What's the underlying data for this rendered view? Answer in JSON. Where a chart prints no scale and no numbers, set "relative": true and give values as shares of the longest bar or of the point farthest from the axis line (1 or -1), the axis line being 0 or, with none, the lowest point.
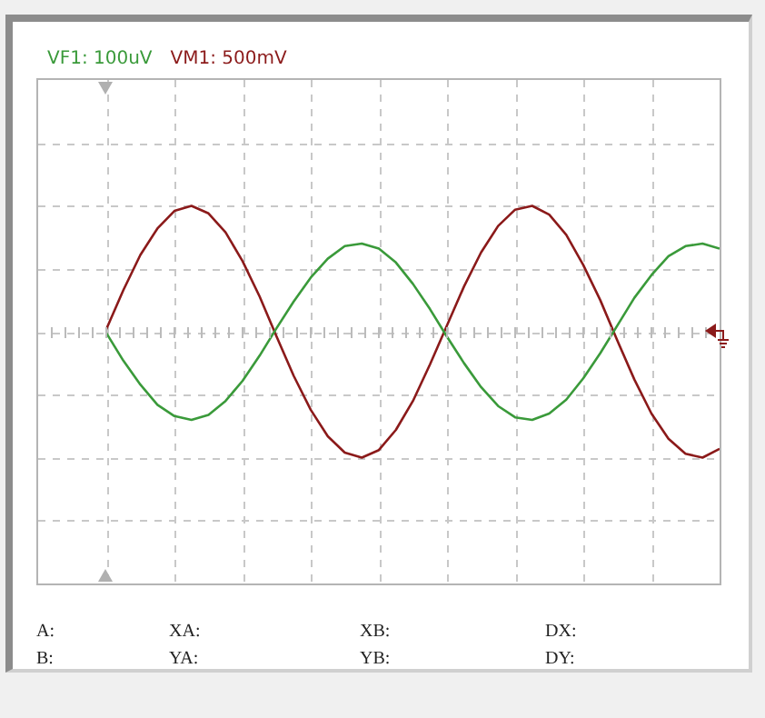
{
  "chart_data": {
    "type": "line",
    "relative": true,
    "grid": true,
    "legend": "top left",
    "marker": "none",
    "categories": [
      null,
      null,
      null,
      null,
      null,
      null,
      null,
      null,
      null,
      null,
      null,
      null,
      null,
      null,
      null,
      null,
      null,
      null,
      null,
      null,
      null,
      null,
      null,
      null,
      null,
      null,
      null,
      null,
      null,
      null,
      null,
      null,
      null,
      null,
      null,
      null,
      null,
      null,
      null,
      null,
      null
    ],
    "series": [
      {
        "name": "VF1: 100uV",
        "color": "#3a9a3a",
        "values": [
          null,
          null,
          null,
          null,
          -0.01,
          -0.23,
          -0.42,
          -0.58,
          -0.67,
          -0.7,
          -0.66,
          -0.55,
          -0.39,
          -0.19,
          0.03,
          0.24,
          0.43,
          0.58,
          0.68,
          0.7,
          0.66,
          0.55,
          0.38,
          0.18,
          -0.04,
          -0.25,
          -0.44,
          -0.59,
          -0.68,
          -0.7,
          -0.65,
          -0.54,
          -0.37,
          -0.17,
          0.05,
          0.27,
          0.45,
          0.6,
          0.68,
          0.7,
          0.66
        ]
      },
      {
        "name": "VM1: 500mV",
        "color": "#8b1a1a",
        "values": [
          null,
          null,
          null,
          null,
          0.02,
          0.33,
          0.61,
          0.82,
          0.96,
          1,
          0.94,
          0.79,
          0.56,
          0.28,
          -0.04,
          -0.35,
          -0.62,
          -0.83,
          -0.96,
          -1,
          -0.94,
          -0.78,
          -0.55,
          -0.26,
          0.05,
          0.36,
          0.63,
          0.84,
          0.97,
          1,
          0.93,
          0.77,
          0.53,
          0.25,
          -0.07,
          -0.38,
          -0.65,
          -0.85,
          -0.97,
          -1,
          -0.93
        ]
      }
    ],
    "annotations": [
      "A:",
      "B:",
      "XA:",
      "YA:",
      "XB:",
      "YB:",
      "DX:",
      "DY:"
    ]
  }
}
